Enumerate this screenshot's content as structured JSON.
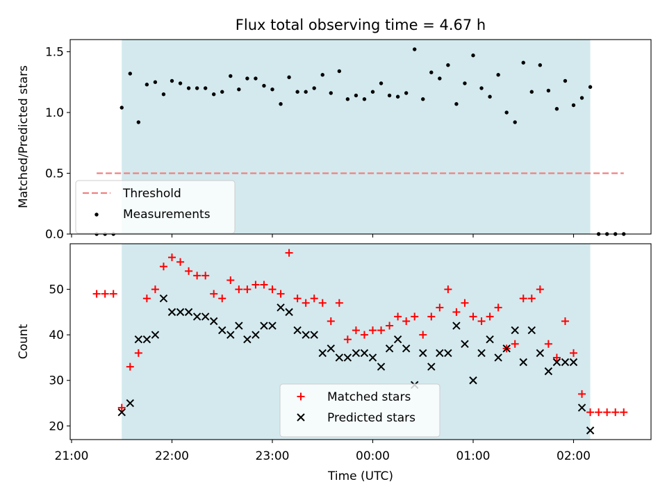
{
  "figure": {
    "title": "Flux total observing time = 4.67 h"
  },
  "chart_data": [
    {
      "type": "scatter",
      "panel": "top",
      "ylabel": "Matched/Predicted stars",
      "ylim": [
        0,
        1.6
      ],
      "yticks": [
        0.0,
        0.5,
        1.0,
        1.5
      ],
      "ytick_labels": [
        "0.0",
        "0.5",
        "1.0",
        "1.5"
      ],
      "xlim": [
        "21:00",
        "02:45"
      ],
      "shaded_interval": [
        "21:30",
        "02:10"
      ],
      "shade_color": "#d3e9ee",
      "legend": {
        "placement": "lower-left",
        "entries": [
          {
            "label": "Threshold",
            "style": "dashed-line",
            "color": "#f08080"
          },
          {
            "label": "Measurements",
            "style": "dot",
            "color": "#000000"
          }
        ]
      },
      "threshold": {
        "name": "Threshold",
        "y": 0.5,
        "x_start": "21:15",
        "x_end": "02:30",
        "color": "#f08080"
      },
      "series": [
        {
          "name": "Measurements",
          "color": "#000000",
          "x": [
            "21:15",
            "21:20",
            "21:25",
            "21:30",
            "21:35",
            "21:40",
            "21:45",
            "21:50",
            "21:55",
            "22:00",
            "22:05",
            "22:10",
            "22:15",
            "22:20",
            "22:25",
            "22:30",
            "22:35",
            "22:40",
            "22:45",
            "22:50",
            "22:55",
            "23:00",
            "23:05",
            "23:10",
            "23:15",
            "23:20",
            "23:25",
            "23:30",
            "23:35",
            "23:40",
            "23:45",
            "23:50",
            "23:55",
            "00:00",
            "00:05",
            "00:10",
            "00:15",
            "00:20",
            "00:25",
            "00:30",
            "00:35",
            "00:40",
            "00:45",
            "00:50",
            "00:55",
            "01:00",
            "01:05",
            "01:10",
            "01:15",
            "01:20",
            "01:25",
            "01:30",
            "01:35",
            "01:40",
            "01:45",
            "01:50",
            "01:55",
            "02:00",
            "02:05",
            "02:10",
            "02:15",
            "02:20",
            "02:25",
            "02:30"
          ],
          "y": [
            0,
            0,
            0,
            1.04,
            1.32,
            0.92,
            1.23,
            1.25,
            1.15,
            1.26,
            1.24,
            1.2,
            1.2,
            1.2,
            1.15,
            1.17,
            1.3,
            1.19,
            1.28,
            1.28,
            1.22,
            1.19,
            1.07,
            1.29,
            1.17,
            1.17,
            1.2,
            1.31,
            1.16,
            1.34,
            1.11,
            1.14,
            1.11,
            1.17,
            1.24,
            1.14,
            1.13,
            1.16,
            1.52,
            1.11,
            1.33,
            1.28,
            1.39,
            1.07,
            1.24,
            1.47,
            1.2,
            1.13,
            1.31,
            1.0,
            0.92,
            1.41,
            1.17,
            1.39,
            1.18,
            1.03,
            1.26,
            1.06,
            1.12,
            1.21,
            0,
            0,
            0,
            0
          ]
        }
      ]
    },
    {
      "type": "scatter",
      "panel": "bottom",
      "xlabel": "Time (UTC)",
      "ylabel": "Count",
      "ylim": [
        17,
        60
      ],
      "yticks": [
        20,
        30,
        40,
        50
      ],
      "ytick_labels": [
        "20",
        "30",
        "40",
        "50"
      ],
      "xlim": [
        "21:00",
        "02:45"
      ],
      "xticks": [
        "21:00",
        "22:00",
        "23:00",
        "00:00",
        "01:00",
        "02:00"
      ],
      "shaded_interval": [
        "21:30",
        "02:10"
      ],
      "shade_color": "#d3e9ee",
      "legend": {
        "placement": "lower-center",
        "entries": [
          {
            "label": "Matched stars",
            "style": "plus",
            "color": "#ff0000"
          },
          {
            "label": "Predicted stars",
            "style": "x",
            "color": "#000000"
          }
        ]
      },
      "series": [
        {
          "name": "Matched stars",
          "marker": "plus",
          "color": "#ff0000",
          "x": [
            "21:15",
            "21:20",
            "21:25",
            "21:30",
            "21:35",
            "21:40",
            "21:45",
            "21:50",
            "21:55",
            "22:00",
            "22:05",
            "22:10",
            "22:15",
            "22:20",
            "22:25",
            "22:30",
            "22:35",
            "22:40",
            "22:45",
            "22:50",
            "22:55",
            "23:00",
            "23:05",
            "23:10",
            "23:15",
            "23:20",
            "23:25",
            "23:30",
            "23:35",
            "23:40",
            "23:45",
            "23:50",
            "23:55",
            "00:00",
            "00:05",
            "00:10",
            "00:15",
            "00:20",
            "00:25",
            "00:30",
            "00:35",
            "00:40",
            "00:45",
            "00:50",
            "00:55",
            "01:00",
            "01:05",
            "01:10",
            "01:15",
            "01:20",
            "01:25",
            "01:30",
            "01:35",
            "01:40",
            "01:45",
            "01:50",
            "01:55",
            "02:00",
            "02:05",
            "02:10",
            "02:15",
            "02:20",
            "02:25",
            "02:30"
          ],
          "y": [
            49,
            49,
            49,
            24,
            33,
            36,
            48,
            50,
            55,
            57,
            56,
            54,
            53,
            53,
            49,
            48,
            52,
            50,
            50,
            51,
            51,
            50,
            49,
            58,
            48,
            47,
            48,
            47,
            43,
            47,
            39,
            41,
            40,
            41,
            41,
            42,
            44,
            43,
            44,
            40,
            44,
            46,
            50,
            45,
            47,
            44,
            43,
            44,
            46,
            37,
            38,
            48,
            48,
            50,
            38,
            35,
            43,
            36,
            27,
            23,
            23,
            23,
            23,
            23
          ]
        },
        {
          "name": "Predicted stars",
          "marker": "x",
          "color": "#000000",
          "x": [
            "21:30",
            "21:35",
            "21:40",
            "21:45",
            "21:50",
            "21:55",
            "22:00",
            "22:05",
            "22:10",
            "22:15",
            "22:20",
            "22:25",
            "22:30",
            "22:35",
            "22:40",
            "22:45",
            "22:50",
            "22:55",
            "23:00",
            "23:05",
            "23:10",
            "23:15",
            "23:20",
            "23:25",
            "23:30",
            "23:35",
            "23:40",
            "23:45",
            "23:50",
            "23:55",
            "00:00",
            "00:05",
            "00:10",
            "00:15",
            "00:20",
            "00:25",
            "00:30",
            "00:35",
            "00:40",
            "00:45",
            "00:50",
            "00:55",
            "01:00",
            "01:05",
            "01:10",
            "01:15",
            "01:20",
            "01:25",
            "01:30",
            "01:35",
            "01:40",
            "01:45",
            "01:50",
            "01:55",
            "02:00",
            "02:05",
            "02:10"
          ],
          "y": [
            23,
            25,
            39,
            39,
            40,
            48,
            45,
            45,
            45,
            44,
            44,
            43,
            41,
            40,
            42,
            39,
            40,
            42,
            42,
            46,
            45,
            41,
            40,
            40,
            36,
            37,
            35,
            35,
            36,
            36,
            35,
            33,
            37,
            39,
            37,
            29,
            36,
            33,
            36,
            36,
            42,
            38,
            30,
            36,
            39,
            35,
            37,
            41,
            34,
            41,
            36,
            32,
            34,
            34,
            34,
            24,
            19
          ]
        }
      ]
    }
  ]
}
